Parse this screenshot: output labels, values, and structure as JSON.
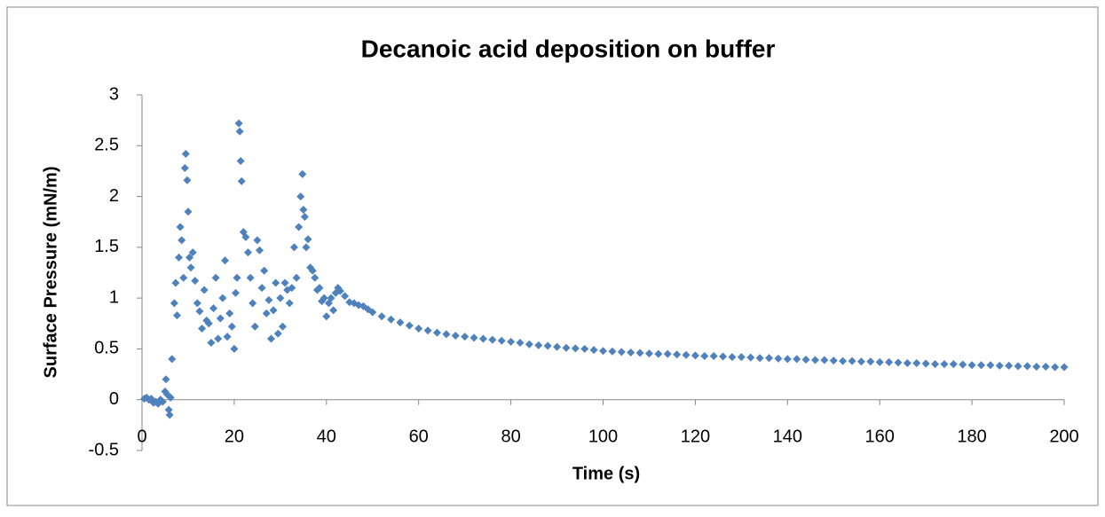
{
  "chart_data": {
    "type": "scatter",
    "title": "Decanoic acid deposition on buffer",
    "x_label": "Time (s)",
    "y_label": "Surface Pressure (mN/m)",
    "xlim": [
      0,
      200
    ],
    "xticks": [
      0,
      20,
      40,
      60,
      80,
      100,
      120,
      140,
      160,
      180,
      200
    ],
    "ylim": [
      -0.5,
      3
    ],
    "yticks": [
      -0.5,
      0,
      0.5,
      1,
      1.5,
      2,
      2.5,
      3
    ],
    "grid": false,
    "series": [
      {
        "name": "Surface Pressure",
        "color": "#4f81bd",
        "x": [
          0.5,
          1,
          1.5,
          2,
          2.5,
          3,
          3.5,
          4,
          4.5,
          5,
          5.2,
          5.5,
          5.8,
          6,
          6.2,
          6.5,
          7,
          7.3,
          7.6,
          8,
          8.3,
          8.6,
          9,
          9.3,
          9.5,
          9.8,
          10,
          10.3,
          10.6,
          11,
          11.5,
          12,
          12.5,
          13,
          13.5,
          14,
          14.5,
          15,
          15.5,
          16,
          16.5,
          17,
          17.5,
          18,
          18.5,
          19,
          19.5,
          20,
          20.3,
          20.6,
          21,
          21.2,
          21.4,
          21.6,
          22,
          22.5,
          23,
          23.5,
          24,
          24.5,
          25,
          25.5,
          26,
          26.5,
          27,
          27.5,
          28,
          28.5,
          29,
          29.5,
          30,
          30.5,
          31,
          31.5,
          32,
          32.5,
          33,
          33.5,
          34,
          34.4,
          34.8,
          35,
          35.3,
          35.6,
          36,
          36.5,
          37,
          37.5,
          38,
          38.5,
          39,
          39.5,
          40,
          40.5,
          41,
          41.5,
          42,
          42.5,
          43,
          44,
          45,
          46,
          47,
          48,
          49,
          50,
          52,
          54,
          56,
          58,
          60,
          62,
          64,
          66,
          68,
          70,
          72,
          74,
          76,
          78,
          80,
          82,
          84,
          86,
          88,
          90,
          92,
          94,
          96,
          98,
          100,
          102,
          104,
          106,
          108,
          110,
          112,
          114,
          116,
          118,
          120,
          122,
          124,
          126,
          128,
          130,
          132,
          134,
          136,
          138,
          140,
          142,
          144,
          146,
          148,
          150,
          152,
          154,
          156,
          158,
          160,
          162,
          164,
          166,
          168,
          170,
          172,
          174,
          176,
          178,
          180,
          182,
          184,
          186,
          188,
          190,
          192,
          194,
          196,
          198,
          200
        ],
        "values": [
          0.01,
          0.02,
          0,
          0.01,
          -0.03,
          -0.02,
          -0.04,
          0,
          -0.02,
          0.08,
          0.2,
          0.05,
          -0.1,
          -0.15,
          0.02,
          0.4,
          0.95,
          1.15,
          0.83,
          1.4,
          1.7,
          1.57,
          1.2,
          2.28,
          2.42,
          2.16,
          1.85,
          1.4,
          1.3,
          1.45,
          1.17,
          0.95,
          0.87,
          0.7,
          1.08,
          0.78,
          0.75,
          0.56,
          0.9,
          1.2,
          0.6,
          0.8,
          1,
          1.37,
          0.62,
          0.85,
          0.72,
          0.5,
          1.05,
          1.2,
          2.72,
          2.64,
          2.35,
          2.15,
          1.65,
          1.6,
          1.45,
          1.2,
          0.95,
          0.72,
          1.57,
          1.47,
          1.1,
          1.27,
          0.85,
          0.98,
          0.6,
          0.88,
          1.15,
          0.65,
          1,
          0.72,
          1.15,
          1.08,
          0.95,
          1.1,
          1.5,
          1.2,
          1.7,
          2,
          2.22,
          1.87,
          1.8,
          1.5,
          1.58,
          1.3,
          1.27,
          1.2,
          1.08,
          1.1,
          0.97,
          1,
          0.82,
          0.95,
          1,
          0.88,
          1.05,
          1.1,
          1.07,
          1.02,
          0.96,
          0.95,
          0.93,
          0.92,
          0.89,
          0.86,
          0.82,
          0.79,
          0.76,
          0.73,
          0.7,
          0.68,
          0.66,
          0.645,
          0.63,
          0.62,
          0.61,
          0.6,
          0.59,
          0.58,
          0.57,
          0.56,
          0.545,
          0.535,
          0.53,
          0.52,
          0.51,
          0.505,
          0.5,
          0.49,
          0.48,
          0.475,
          0.47,
          0.465,
          0.46,
          0.455,
          0.45,
          0.45,
          0.445,
          0.44,
          0.435,
          0.43,
          0.43,
          0.425,
          0.42,
          0.42,
          0.415,
          0.41,
          0.41,
          0.405,
          0.4,
          0.4,
          0.395,
          0.39,
          0.39,
          0.385,
          0.38,
          0.38,
          0.375,
          0.375,
          0.37,
          0.37,
          0.365,
          0.36,
          0.36,
          0.355,
          0.35,
          0.35,
          0.35,
          0.345,
          0.34,
          0.34,
          0.34,
          0.335,
          0.335,
          0.33,
          0.33,
          0.325,
          0.325,
          0.32,
          0.32
        ]
      }
    ]
  }
}
